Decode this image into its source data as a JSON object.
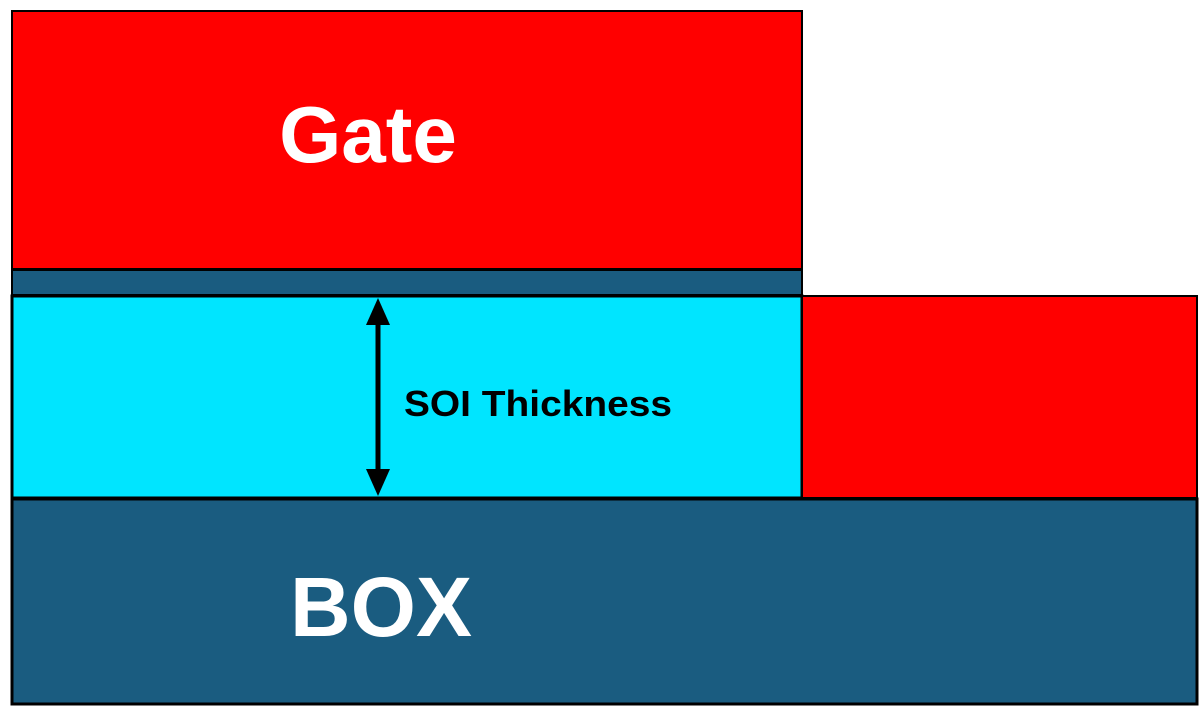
{
  "diagram": {
    "gate_label": "Gate",
    "box_label": "BOX",
    "soi_label": "SOI Thickness",
    "colors": {
      "gate": "#ff0000",
      "side_block": "#ff0000",
      "oxide": "#1a5c80",
      "soi": "#00e5ff",
      "box": "#1a5c80",
      "outline": "#000000"
    }
  }
}
